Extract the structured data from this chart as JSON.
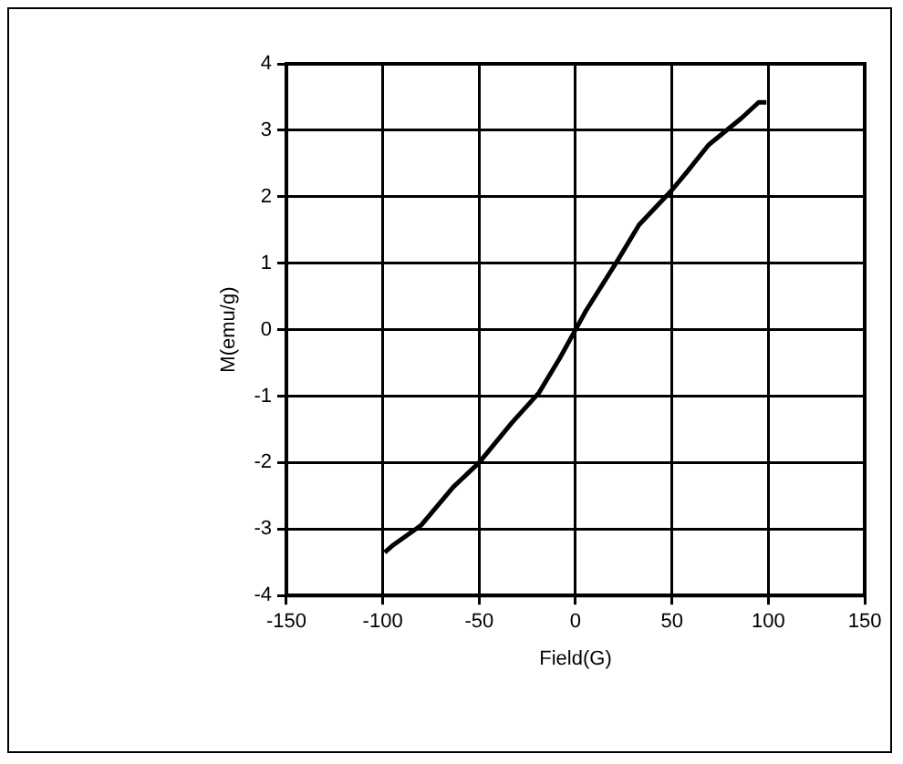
{
  "chart_data": {
    "type": "line",
    "xlabel": "Field(G)",
    "ylabel": "M(emu/g)",
    "x": [
      -99,
      -95,
      -80,
      -63.5,
      -50,
      -33,
      -19,
      -8,
      0,
      5.5,
      22,
      33,
      50,
      58,
      69,
      86,
      95,
      99
    ],
    "series": [
      {
        "color": "#000000",
        "values": [
          -3.35,
          -3.25,
          -2.94,
          -2.37,
          -2.0,
          -1.4,
          -0.95,
          -0.42,
          0,
          0.29,
          1.05,
          1.58,
          2.1,
          2.38,
          2.78,
          3.18,
          3.42,
          3.42
        ]
      }
    ],
    "xlim": [
      -150,
      150
    ],
    "xticks": [
      -150,
      -100,
      -50,
      0,
      50,
      100,
      150
    ],
    "ylim": [
      -4,
      4
    ],
    "yticks": [
      -4,
      -3,
      -2,
      -1,
      0,
      1,
      2,
      3,
      4
    ],
    "grid": true,
    "legend": false,
    "marker": "none",
    "line_style": "solid"
  }
}
